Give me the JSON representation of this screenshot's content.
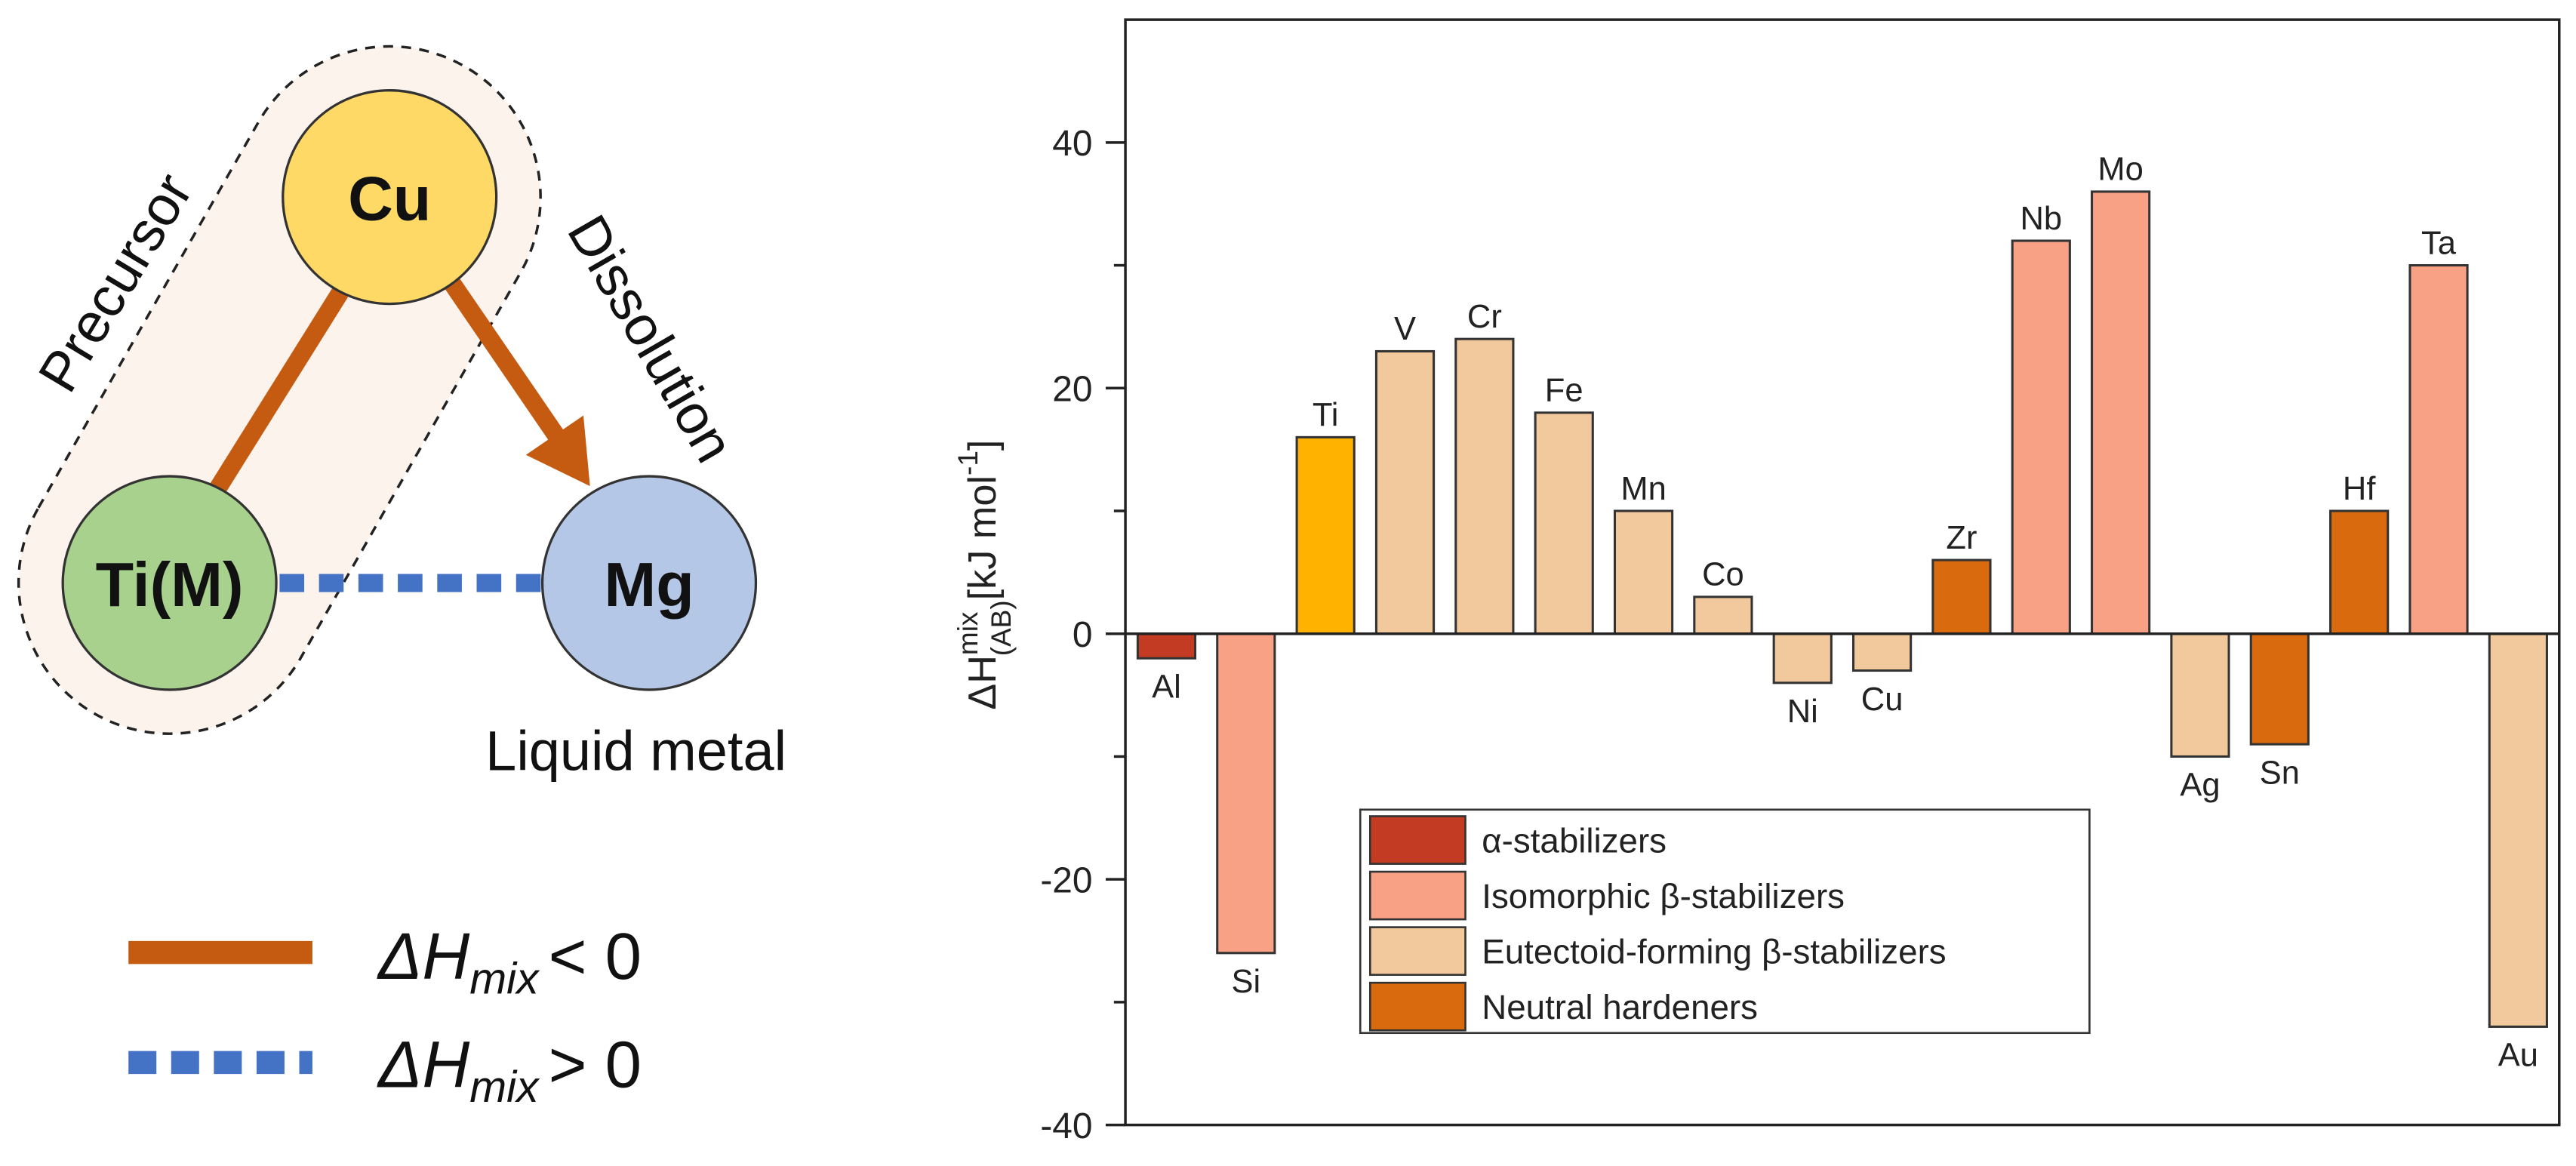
{
  "diagram": {
    "nodes": {
      "cu": "Cu",
      "ti": "Ti(M)",
      "mg": "Mg"
    },
    "labels": {
      "precursor": "Precursor",
      "dissolution": "Dissolution",
      "liquid_metal": "Liquid metal"
    },
    "legend": {
      "negative": {
        "symbol": "ΔH",
        "subscript": "mix",
        "relation": "< 0"
      },
      "positive": {
        "symbol": "ΔH",
        "subscript": "mix",
        "relation": "> 0"
      }
    },
    "colors": {
      "cu": "#ffd966",
      "ti": "#a9d18e",
      "mg": "#b4c7e7",
      "negative_line": "#c55a11",
      "positive_line": "#4472c4",
      "precursor_region": "#fdf3ed"
    }
  },
  "chart_data": {
    "type": "bar",
    "categories": [
      "Al",
      "Si",
      "Ti",
      "V",
      "Cr",
      "Fe",
      "Mn",
      "Co",
      "Ni",
      "Cu",
      "Zr",
      "Nb",
      "Mo",
      "Ag",
      "Sn",
      "Hf",
      "Ta",
      "Au"
    ],
    "values": [
      -2,
      -26,
      16,
      23,
      24,
      18,
      10,
      3,
      -4,
      -3,
      6,
      32,
      36,
      -10,
      -9,
      10,
      30,
      -32
    ],
    "groups": [
      "alpha",
      "isomorphic",
      "ti",
      "eutectoid",
      "eutectoid",
      "eutectoid",
      "eutectoid",
      "eutectoid",
      "eutectoid",
      "eutectoid",
      "neutral",
      "isomorphic",
      "isomorphic",
      "eutectoid",
      "neutral",
      "neutral",
      "isomorphic",
      "eutectoid"
    ],
    "colors": {
      "alpha": "#c23b22",
      "isomorphic": "#f9a185",
      "eutectoid": "#f2c99c",
      "neutral": "#d96a0e",
      "ti": "#ffb300"
    },
    "legend": [
      {
        "group": "alpha",
        "label": "α-stabilizers"
      },
      {
        "group": "isomorphic",
        "label": "Isomorphic β-stabilizers"
      },
      {
        "group": "eutectoid",
        "label": "Eutectoid-forming β-stabilizers"
      },
      {
        "group": "neutral",
        "label": "Neutral hardeners"
      }
    ],
    "legend_position": "bottom-center",
    "ylabel": {
      "symbol": "ΔH",
      "superscript": "mix",
      "subscript": "(AB)",
      "unit": "[kJ mol",
      "unit_superscript": "-1",
      "unit_close": "]"
    },
    "ylim": [
      -40,
      50
    ],
    "yticks": [
      -40,
      -20,
      0,
      20,
      40
    ],
    "yminor_ticks": [
      -30,
      -10,
      10,
      30
    ],
    "grid": false
  }
}
